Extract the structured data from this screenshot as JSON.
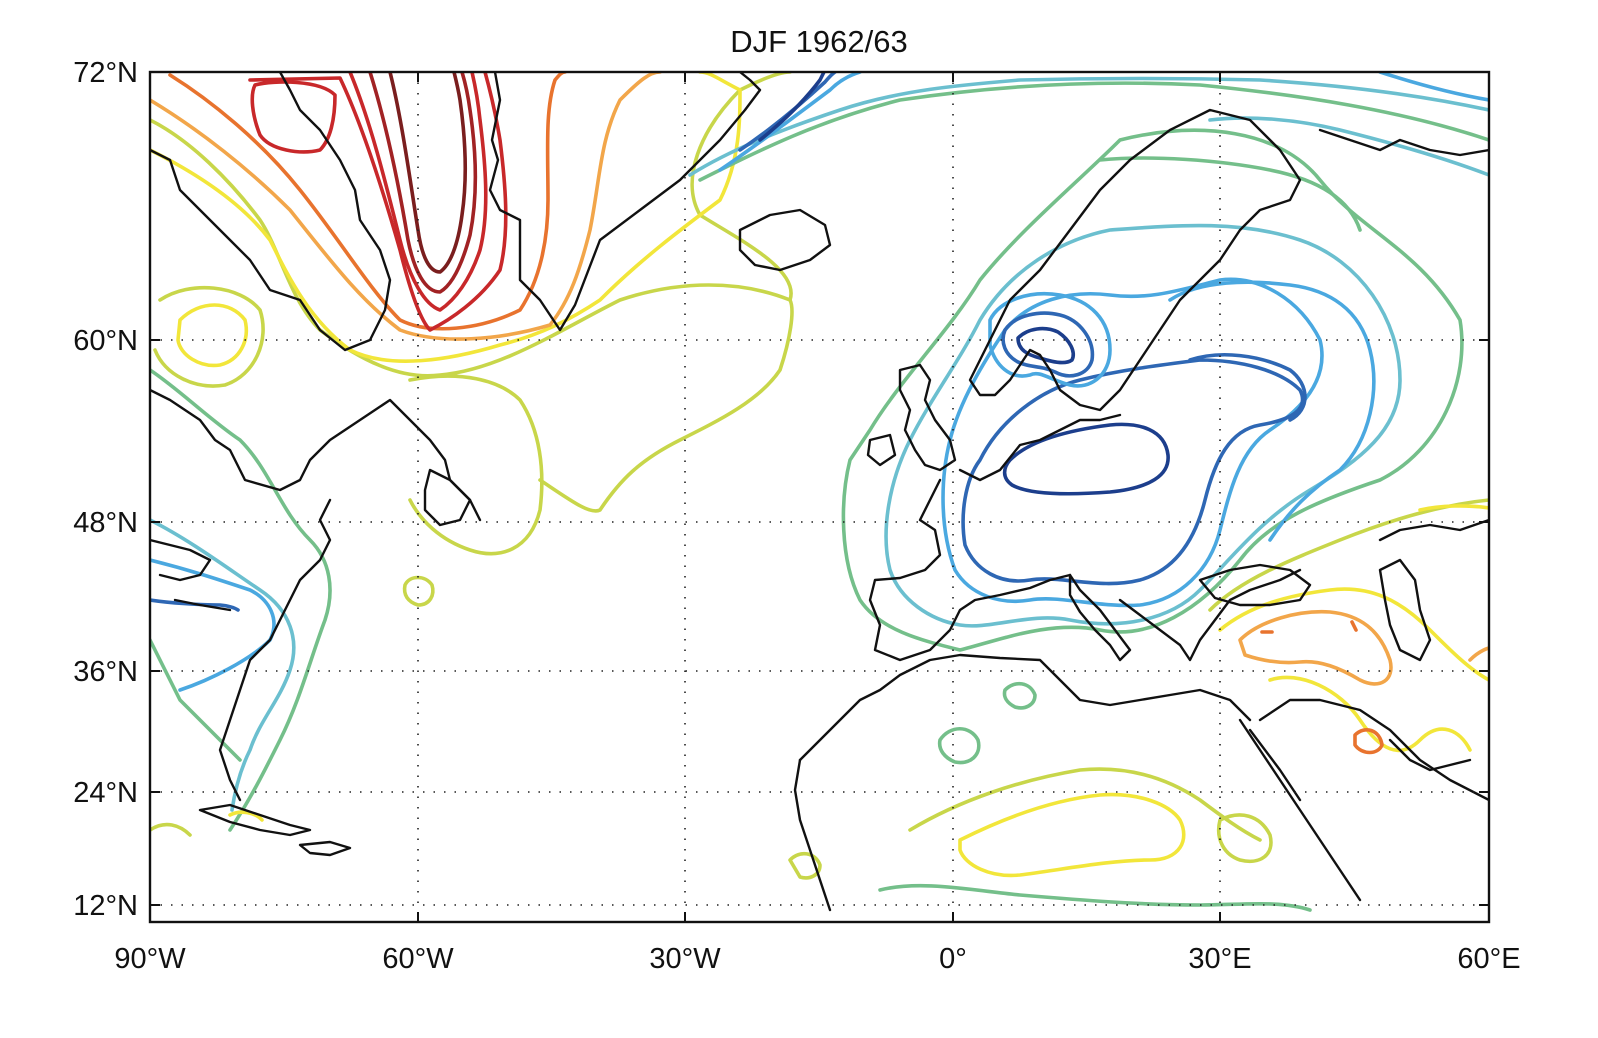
{
  "map": {
    "title": "DJF 1962/63",
    "extent": {
      "lon": [
        -90,
        60
      ],
      "lat": [
        10,
        72
      ]
    },
    "x_ticks": [
      {
        "lon": -90,
        "label": "90°W"
      },
      {
        "lon": -60,
        "label": "60°W"
      },
      {
        "lon": -30,
        "label": "30°W"
      },
      {
        "lon": 0,
        "label": "0°"
      },
      {
        "lon": 30,
        "label": "30°E"
      },
      {
        "lon": 60,
        "label": "60°E"
      }
    ],
    "y_ticks": [
      {
        "lat": 72,
        "label": "72°N"
      },
      {
        "lat": 60,
        "label": "60°N"
      },
      {
        "lat": 48,
        "label": "48°N"
      },
      {
        "lat": 36,
        "label": "36°N"
      },
      {
        "lat": 24,
        "label": "24°N"
      },
      {
        "lat": 12,
        "label": "12°N"
      }
    ],
    "grid": true,
    "colors": {
      "positive_strong": "#7a1e1e",
      "positive": "#c8282a",
      "positive_mid": "#e8732e",
      "positive_weak": "#f2a64a",
      "slightly_positive": "#f2e63a",
      "near_zero": "#c8d64a",
      "slightly_negative": "#74bf8a",
      "negative_weak": "#6bbfcf",
      "negative": "#4aa8e0",
      "negative_strong": "#2e67b4",
      "negative_deep": "#1c3e8c",
      "coastline": "#111111"
    }
  }
}
